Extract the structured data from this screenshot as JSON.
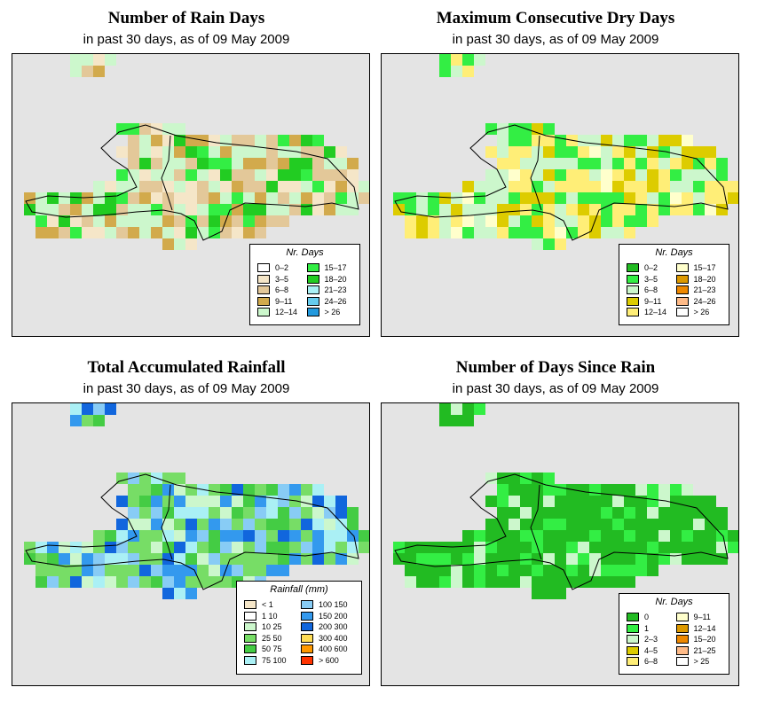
{
  "panels": [
    {
      "title": "Number of Rain Days",
      "subtitle": "in past 30 days, as of  09 May 2009",
      "legend_title": "Nr. Days",
      "legend_items": [
        {
          "label": "0–2",
          "color": "#ffffff"
        },
        {
          "label": "3–5",
          "color": "#f5e6c8"
        },
        {
          "label": "6–8",
          "color": "#e3c899"
        },
        {
          "label": "9–11",
          "color": "#d2aa4c"
        },
        {
          "label": "12–14",
          "color": "#ccf7cc"
        },
        {
          "label": "15–17",
          "color": "#33ee44"
        },
        {
          "label": "18–20",
          "color": "#22cc22"
        },
        {
          "label": "21–23",
          "color": "#aaf0f5"
        },
        {
          "label": "24–26",
          "color": "#66ccee"
        },
        {
          "label": "> 26",
          "color": "#2299dd"
        }
      ]
    },
    {
      "title": "Maximum Consecutive Dry Days",
      "subtitle": "in past 30 days, as of  09 May 2009",
      "legend_title": "Nr. Days",
      "legend_items": [
        {
          "label": "0–2",
          "color": "#22bb22"
        },
        {
          "label": "3–5",
          "color": "#33ee44"
        },
        {
          "label": "6–8",
          "color": "#ccf7cc"
        },
        {
          "label": "9–11",
          "color": "#ddcc00"
        },
        {
          "label": "12–14",
          "color": "#ffee77"
        },
        {
          "label": "15–17",
          "color": "#ffffcc"
        },
        {
          "label": "18–20",
          "color": "#dd9900"
        },
        {
          "label": "21–23",
          "color": "#ee8800"
        },
        {
          "label": "24–26",
          "color": "#ffbb88"
        },
        {
          "label": "> 26",
          "color": "#ffffff"
        }
      ]
    },
    {
      "title": "Total Accumulated Rainfall",
      "subtitle": "in past 30 days, as of  09 May 2009",
      "legend_title": "Rainfall (mm)",
      "legend_items": [
        {
          "label": "< 1",
          "color": "#f5e6c8"
        },
        {
          "label": "1    10",
          "color": "#ffffff"
        },
        {
          "label": "10    25",
          "color": "#ccf7cc"
        },
        {
          "label": "25    50",
          "color": "#77dd66"
        },
        {
          "label": "50    75",
          "color": "#44cc44"
        },
        {
          "label": "75  100",
          "color": "#aaf0f5"
        },
        {
          "label": "100  150",
          "color": "#88ccf5"
        },
        {
          "label": "150  200",
          "color": "#3399ee"
        },
        {
          "label": "200  300",
          "color": "#1166dd"
        },
        {
          "label": "300  400",
          "color": "#ffdd55"
        },
        {
          "label": "400  600",
          "color": "#ff9900"
        },
        {
          "label": "> 600",
          "color": "#ff3300"
        }
      ]
    },
    {
      "title": "Number of Days Since Rain",
      "subtitle": "in past 30 days, as of  09 May 2009",
      "legend_title": "Nr. Days",
      "legend_items": [
        {
          "label": "0",
          "color": "#22bb22"
        },
        {
          "label": "1",
          "color": "#33ee44"
        },
        {
          "label": "2–3",
          "color": "#ccf7cc"
        },
        {
          "label": "4–5",
          "color": "#ddcc00"
        },
        {
          "label": "6–8",
          "color": "#ffee77"
        },
        {
          "label": "9–11",
          "color": "#ffffcc"
        },
        {
          "label": "12–14",
          "color": "#dd9900"
        },
        {
          "label": "15–20",
          "color": "#ee8800"
        },
        {
          "label": "21–25",
          "color": "#ffbb88"
        },
        {
          "label": "> 25",
          "color": "#ffffff"
        }
      ]
    }
  ]
}
